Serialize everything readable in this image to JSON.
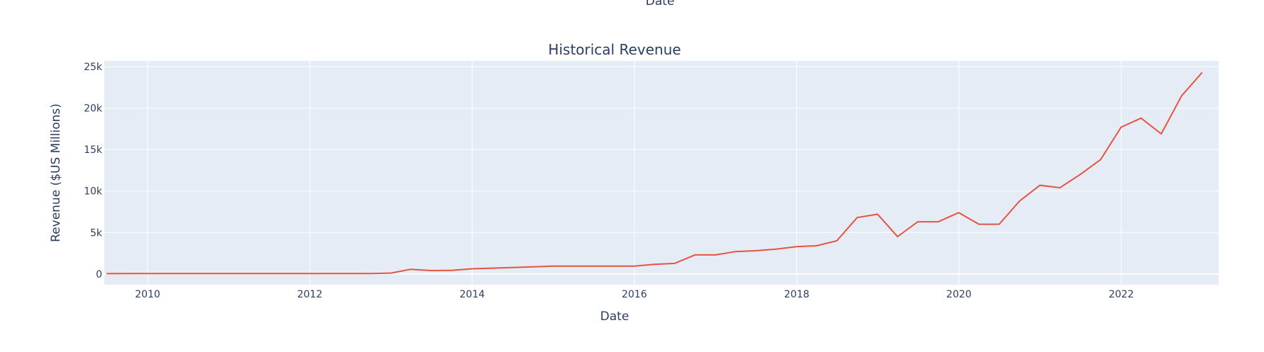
{
  "top_partial_label": "Date",
  "chart_data": {
    "type": "line",
    "title": "Historical Revenue",
    "xlabel": "Date",
    "ylabel": "Revenue ($US Millions)",
    "x_range": [
      "2009-06-20",
      "2023-03-15"
    ],
    "ylim": [
      -1300,
      25700
    ],
    "x_ticks": [
      "2010",
      "2012",
      "2014",
      "2016",
      "2018",
      "2020",
      "2022"
    ],
    "y_ticks": [
      0,
      5000,
      10000,
      15000,
      20000,
      25000
    ],
    "y_tick_labels": [
      "0",
      "5k",
      "10k",
      "15k",
      "20k",
      "25k"
    ],
    "grid": true,
    "line_color": "#e4553f",
    "plot_bg": "#e5ecf6",
    "series": [
      {
        "x": [
          "2009-06-30",
          "2009-09-30",
          "2009-12-31",
          "2010-03-31",
          "2010-06-30",
          "2010-09-30",
          "2010-12-31",
          "2011-03-31",
          "2011-06-30",
          "2011-09-30",
          "2011-12-31",
          "2012-03-31",
          "2012-06-30",
          "2012-09-30",
          "2012-12-31",
          "2013-03-31",
          "2013-06-30",
          "2013-09-30",
          "2013-12-31",
          "2014-03-31",
          "2014-06-30",
          "2014-09-30",
          "2014-12-31",
          "2015-03-31",
          "2015-06-30",
          "2015-09-30",
          "2015-12-31",
          "2016-03-31",
          "2016-06-30",
          "2016-09-30",
          "2016-12-31",
          "2017-03-31",
          "2017-06-30",
          "2017-09-30",
          "2017-12-31",
          "2018-03-31",
          "2018-06-30",
          "2018-09-30",
          "2018-12-31",
          "2019-03-31",
          "2019-06-30",
          "2019-09-30",
          "2019-12-31",
          "2020-03-31",
          "2020-06-30",
          "2020-09-30",
          "2020-12-31",
          "2021-03-31",
          "2021-06-30",
          "2021-09-30",
          "2021-12-31",
          "2022-03-31",
          "2022-06-30",
          "2022-09-30",
          "2022-12-31"
        ],
        "values": [
          30,
          40,
          40,
          40,
          40,
          40,
          40,
          40,
          40,
          40,
          40,
          40,
          40,
          50,
          100,
          560,
          410,
          430,
          620,
          700,
          770,
          850,
          940,
          940,
          940,
          940,
          940,
          1150,
          1270,
          2300,
          2300,
          2700,
          2800,
          3000,
          3300,
          3400,
          4000,
          6800,
          7200,
          4500,
          6300,
          6300,
          7400,
          6000,
          6000,
          8800,
          10700,
          10400,
          12000,
          13800,
          17700,
          18800,
          16900,
          21500,
          24300
        ]
      }
    ]
  }
}
